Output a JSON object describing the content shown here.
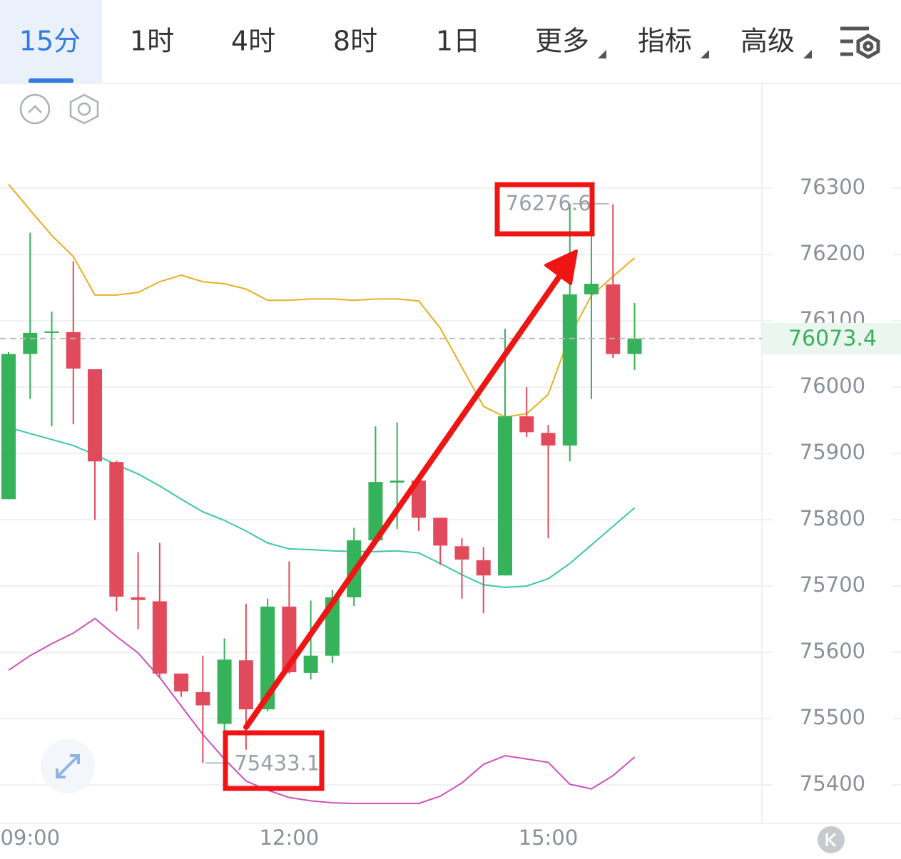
{
  "tabs": [
    "15分",
    "1时",
    "4时",
    "8时",
    "1日",
    "更多",
    "指标",
    "高级"
  ],
  "chart_data": {
    "type": "candlestick",
    "categories": [
      null,
      "09:00",
      null,
      null,
      null,
      null,
      null,
      null,
      null,
      null,
      null,
      null,
      null,
      "12:00",
      null,
      null,
      null,
      null,
      null,
      null,
      null,
      null,
      null,
      null,
      null,
      "15:00",
      null,
      null,
      null,
      null
    ],
    "open": [
      75831,
      76050,
      76082,
      76083,
      76027,
      75887,
      75683,
      75677,
      75568,
      75540,
      75492,
      75588,
      75514,
      75669,
      75569,
      75595,
      75683,
      75769,
      75856,
      75859,
      75803,
      75760,
      75739,
      75716,
      75956,
      75931,
      75912,
      76140,
      76155,
      76050
    ],
    "high": [
      76053,
      76233,
      76114,
      76190,
      76027,
      75889,
      75751,
      75765,
      75568,
      75595,
      75621,
      75673,
      75681,
      75737,
      75678,
      75694,
      75788,
      75941,
      75947,
      75859,
      75803,
      75772,
      75759,
      76088,
      76000,
      75943,
      76276.6,
      76229,
      76276,
      76127
    ],
    "low": [
      75831,
      75982,
      75941,
      75944,
      75800,
      75662,
      75635,
      75562,
      75533,
      75433.1,
      75476,
      75453,
      75511,
      75568,
      75559,
      75584,
      75670,
      75761,
      75786,
      75783,
      75732,
      75681,
      75659,
      75716,
      75925,
      75772,
      75888,
      75982,
      76044,
      76026
    ],
    "close": [
      76050,
      76082,
      76084,
      76028,
      75888,
      75684,
      75679,
      75568,
      75541,
      75520,
      75589,
      75514,
      75669,
      75570,
      75595,
      75683,
      75769,
      75857,
      75859,
      75803,
      75761,
      75740,
      75716,
      75956,
      75932,
      75912,
      76140,
      76156,
      76050,
      76073.4
    ],
    "up_color": "#35b25a",
    "down_color": "#e04a5a",
    "lines": [
      {
        "color": "#e8b020",
        "values": [
          76306,
          76267,
          76229,
          76197,
          76139,
          76139,
          76143,
          76159,
          76169,
          76159,
          76156,
          76148,
          76131,
          76131,
          76133,
          76133,
          76131,
          76133,
          76133,
          76130,
          76089,
          76030,
          75971,
          75955,
          75960,
          75989,
          76078,
          76138,
          76167,
          76195
        ]
      },
      {
        "color": "#3cc7a8",
        "values": [
          75939,
          75930,
          75921,
          75912,
          75898,
          75883,
          75869,
          75851,
          75831,
          75812,
          75799,
          75783,
          75765,
          75756,
          75755,
          75753,
          75752,
          75752,
          75753,
          75750,
          75734,
          75717,
          75702,
          75698,
          75700,
          75711,
          75734,
          75762,
          75790,
          75818
        ]
      },
      {
        "color": "#d050b8",
        "values": [
          75573,
          75595,
          75613,
          75629,
          75651,
          75624,
          75599,
          75562,
          75519,
          75476,
          75439,
          75406,
          75392,
          75381,
          75376,
          75373,
          75372,
          75372,
          75372,
          75372,
          75383,
          75403,
          75431,
          75444,
          75439,
          75434,
          75401,
          75394,
          75414,
          75442
        ]
      }
    ],
    "ylim": [
      75342,
      76455
    ],
    "yticks": [
      75400,
      75500,
      75600,
      75700,
      75800,
      75900,
      76000,
      76100,
      76200,
      76300
    ],
    "grid": true
  }
}
